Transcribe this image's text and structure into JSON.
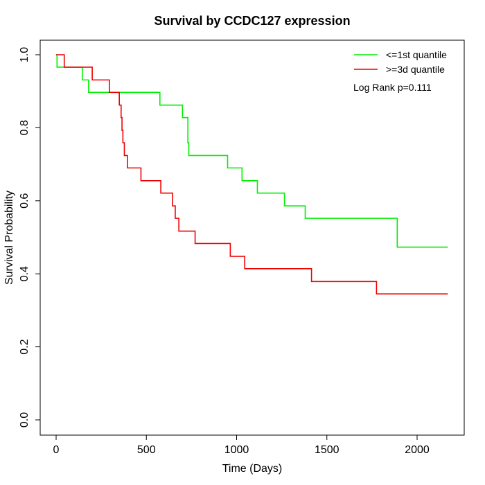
{
  "chart_data": {
    "type": "line",
    "step": true,
    "title": "Survival by CCDC127 expression",
    "xlabel": "Time (Days)",
    "ylabel": "Survival Probability",
    "xlim": [
      0,
      2200
    ],
    "ylim": [
      0,
      1.0
    ],
    "x_ticks": [
      0,
      500,
      1000,
      1500,
      2000
    ],
    "y_ticks": [
      0.0,
      0.2,
      0.4,
      0.6,
      0.8,
      1.0
    ],
    "x_tick_labels": [
      "0",
      "500",
      "1000",
      "1500",
      "2000"
    ],
    "y_tick_labels": [
      "0.0",
      "0.2",
      "0.4",
      "0.6",
      "0.8",
      "1.0"
    ],
    "grid": false,
    "legend_position": "top-right",
    "annotation": "Log Rank p=0.111",
    "series": [
      {
        "name": "<=1st quantile",
        "color": "#00ee00",
        "x": [
          0,
          5,
          145,
          180,
          575,
          700,
          730,
          735,
          750,
          950,
          1030,
          1115,
          1265,
          1380,
          1890,
          2170
        ],
        "y": [
          1.0,
          0.966,
          0.931,
          0.897,
          0.862,
          0.828,
          0.759,
          0.724,
          0.724,
          0.69,
          0.655,
          0.621,
          0.586,
          0.552,
          0.473,
          0.473
        ]
      },
      {
        "name": ">=3d quantile",
        "color": "#ee0000",
        "x": [
          0,
          45,
          200,
          295,
          350,
          360,
          365,
          370,
          378,
          385,
          395,
          405,
          470,
          580,
          645,
          660,
          680,
          770,
          965,
          1045,
          1415,
          1775,
          2170
        ],
        "y": [
          1.0,
          0.966,
          0.931,
          0.897,
          0.862,
          0.828,
          0.793,
          0.759,
          0.724,
          0.724,
          0.69,
          0.69,
          0.655,
          0.621,
          0.586,
          0.552,
          0.517,
          0.483,
          0.448,
          0.414,
          0.379,
          0.345,
          0.345
        ]
      }
    ]
  }
}
